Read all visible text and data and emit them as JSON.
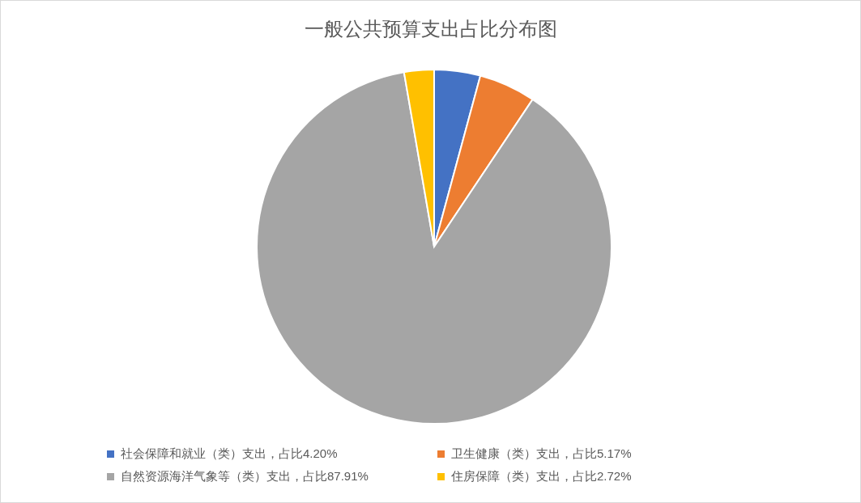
{
  "chart_data": {
    "type": "pie",
    "title": "一般公共预算支出占比分布图",
    "categories": [
      "社会保障和就业（类）支出，占比4.20%",
      "卫生健康（类）支出，占比5.17%",
      "自然资源海洋气象等（类）支出，占比87.91%",
      "住房保障（类）支出，占比2.72%"
    ],
    "values": [
      4.2,
      5.17,
      87.91,
      2.72
    ],
    "colors": [
      "#4472c4",
      "#ed7d31",
      "#a5a5a5",
      "#ffc000"
    ],
    "legend": "bottom"
  }
}
